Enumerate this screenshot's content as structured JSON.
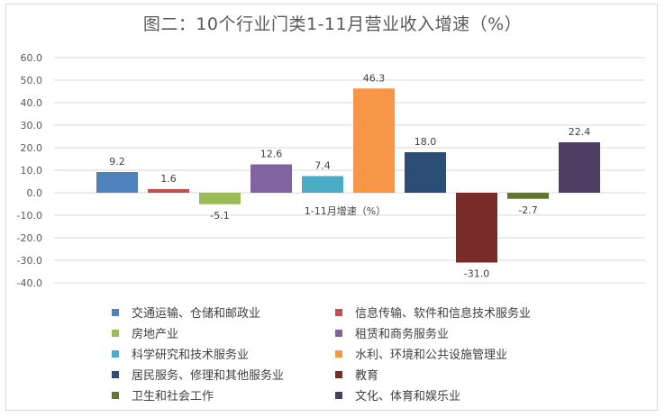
{
  "chart_data": {
    "type": "bar",
    "title": "图二：10个行业门类1-11月营业收入增速（%）",
    "series_name": "1-11月增速（%）",
    "xlabel": "1-11月增速（%）",
    "ylabel": "",
    "ylim": [
      -40,
      60
    ],
    "yticks": [
      60,
      50,
      40,
      30,
      20,
      10,
      0,
      -10,
      -20,
      -30,
      -40
    ],
    "ytick_labels": [
      "60.0",
      "50.0",
      "40.0",
      "30.0",
      "20.0",
      "10.0",
      "0.0",
      "-10.0",
      "-20.0",
      "-30.0",
      "-40.0"
    ],
    "grid": true,
    "legend_position": "bottom",
    "categories": [
      "交通运输、仓储和邮政业",
      "信息传输、软件和信息技术服务业",
      "房地产业",
      "租赁和商务服务业",
      "科学研究和技术服务业",
      "水利、环境和公共设施管理业",
      "居民服务、修理和其他服务业",
      "教育",
      "卫生和社会工作",
      "文化、体育和娱乐业"
    ],
    "values": [
      9.2,
      1.6,
      -5.1,
      12.6,
      7.4,
      46.3,
      18.0,
      -31.0,
      -2.7,
      22.4
    ],
    "value_labels": [
      "9.2",
      "1.6",
      "-5.1",
      "12.6",
      "7.4",
      "46.3",
      "18.0",
      "-31.0",
      "-2.7",
      "22.4"
    ],
    "colors": [
      "#4f81bd",
      "#c0504d",
      "#9bbb59",
      "#8064a2",
      "#4bacc6",
      "#f79646",
      "#2c4d75",
      "#772c2a",
      "#5f7530",
      "#4d3b62"
    ]
  }
}
